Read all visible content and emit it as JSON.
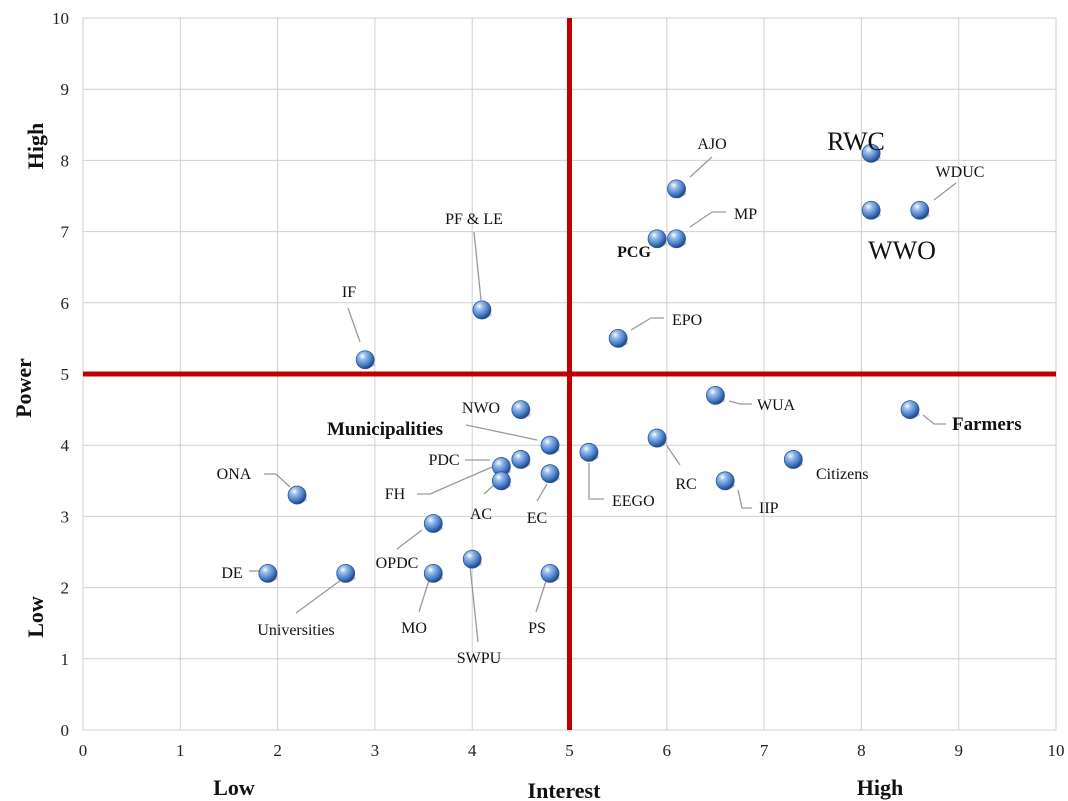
{
  "chart_data": {
    "type": "scatter",
    "title": "",
    "xlabel": "Interest",
    "ylabel": "Power",
    "xlim": [
      0,
      10
    ],
    "ylim": [
      0,
      10
    ],
    "x_ticks": [
      0,
      1,
      2,
      3,
      4,
      5,
      6,
      7,
      8,
      9,
      10
    ],
    "y_ticks": [
      0,
      1,
      2,
      3,
      4,
      5,
      6,
      7,
      8,
      9,
      10
    ],
    "grid": true,
    "x_low_label": "Low",
    "x_high_label": "High",
    "y_low_label": "Low",
    "y_high_label": "High",
    "quadrant_lines": {
      "x": 5,
      "y": 5,
      "color": "#c00000"
    },
    "marker_color": "#4a7fc8",
    "points": [
      {
        "label": "RWC",
        "x": 8.1,
        "y": 8.1
      },
      {
        "label": "WDUC",
        "x": 8.6,
        "y": 7.3
      },
      {
        "label": "WWO",
        "x": 8.1,
        "y": 7.3
      },
      {
        "label": "AJO",
        "x": 6.1,
        "y": 7.6
      },
      {
        "label": "MP",
        "x": 6.1,
        "y": 6.9
      },
      {
        "label": "PCG",
        "x": 5.9,
        "y": 6.9
      },
      {
        "label": "EPO",
        "x": 5.5,
        "y": 5.5
      },
      {
        "label": "PF & LE",
        "x": 4.1,
        "y": 5.9
      },
      {
        "label": "IF",
        "x": 2.9,
        "y": 5.2
      },
      {
        "label": "WUA",
        "x": 6.5,
        "y": 4.7
      },
      {
        "label": "Farmers",
        "x": 8.5,
        "y": 4.5
      },
      {
        "label": "RC",
        "x": 5.9,
        "y": 4.1
      },
      {
        "label": "Citizens",
        "x": 7.3,
        "y": 3.8
      },
      {
        "label": "IIP",
        "x": 6.6,
        "y": 3.5
      },
      {
        "label": "EEGO",
        "x": 5.2,
        "y": 3.9
      },
      {
        "label": "EC",
        "x": 4.8,
        "y": 3.6
      },
      {
        "label": "Municipalities",
        "x": 4.8,
        "y": 4.0
      },
      {
        "label": "NWO",
        "x": 4.5,
        "y": 4.5
      },
      {
        "label": "PDC",
        "x": 4.3,
        "y": 3.7
      },
      {
        "label": "FH",
        "x": 4.5,
        "y": 3.8
      },
      {
        "label": "AC",
        "x": 4.3,
        "y": 3.5
      },
      {
        "label": "ONA",
        "x": 2.2,
        "y": 3.3
      },
      {
        "label": "OPDC",
        "x": 3.6,
        "y": 2.9
      },
      {
        "label": "SWPU",
        "x": 4.0,
        "y": 2.4
      },
      {
        "label": "MO",
        "x": 3.6,
        "y": 2.2
      },
      {
        "label": "PS",
        "x": 4.8,
        "y": 2.2
      },
      {
        "label": "DE",
        "x": 1.9,
        "y": 2.2
      },
      {
        "label": "Universities",
        "x": 2.7,
        "y": 2.2
      }
    ]
  }
}
